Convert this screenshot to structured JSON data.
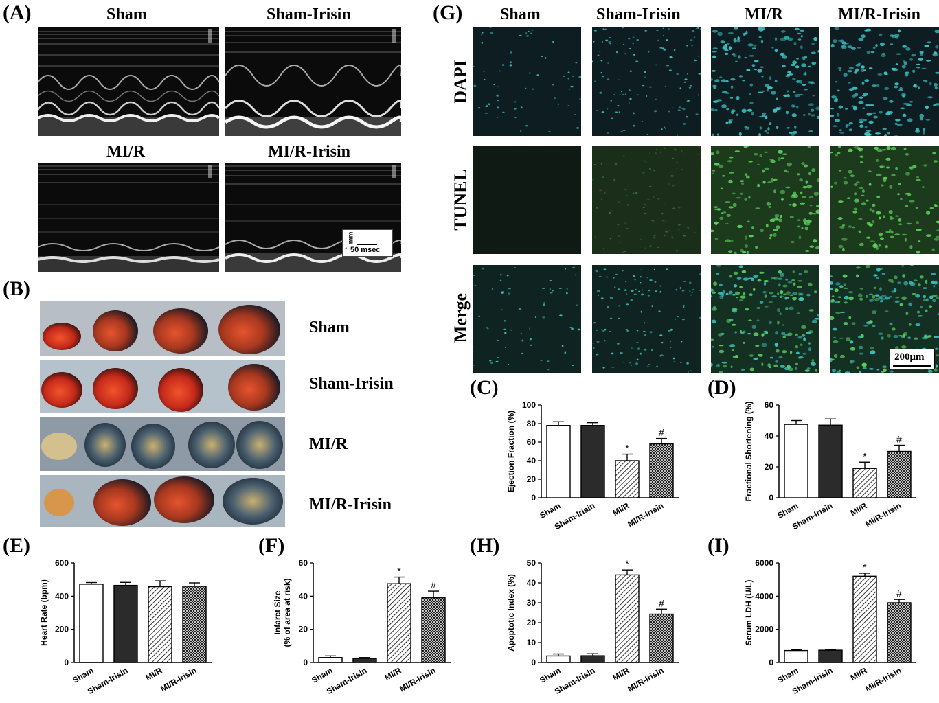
{
  "panels": {
    "A": "(A)",
    "B": "(B)",
    "C": "(C)",
    "D": "(D)",
    "E": "(E)",
    "F": "(F)",
    "G": "(G)",
    "H": "(H)",
    "I": "(I)"
  },
  "groups": [
    "Sham",
    "Sham-Irisin",
    "MI/R",
    "MI/R-Irisin"
  ],
  "echo": {
    "titles": [
      "Sham",
      "Sham-Irisin",
      "MI/R",
      "MI/R-Irisin"
    ],
    "scale_mm": "mm",
    "scale_ms": "50 msec",
    "scale_arrow": "↑"
  },
  "hearts": {
    "labels": [
      "Sham",
      "Sham-Irisin",
      "MI/R",
      "MI/R-Irisin"
    ]
  },
  "micro": {
    "col_titles": [
      "Sham",
      "Sham-Irisin",
      "MI/R",
      "MI/R-Irisin"
    ],
    "row_labels": [
      "DAPI",
      "TUNEL",
      "Merge"
    ],
    "scale_bar": "200μm"
  },
  "chart_data": [
    {
      "id": "C",
      "type": "bar",
      "categories": [
        "Sham",
        "Sham-Irisin",
        "MI/R",
        "MI/R-Irisin"
      ],
      "values": [
        78,
        78,
        40,
        58
      ],
      "errors": [
        4,
        3,
        7,
        6
      ],
      "sig": [
        "",
        "",
        "*",
        "#"
      ],
      "ylabel": "Ejection Fraction (%)",
      "ylabel2": "",
      "ylim": [
        0,
        100
      ],
      "yticks": [
        0,
        20,
        40,
        60,
        80,
        100
      ]
    },
    {
      "id": "D",
      "type": "bar",
      "categories": [
        "Sham",
        "Sham-Irisin",
        "MI/R",
        "MI/R-Irisin"
      ],
      "values": [
        47.5,
        47,
        19,
        30
      ],
      "errors": [
        2.5,
        4,
        4,
        4
      ],
      "sig": [
        "",
        "",
        "*",
        "#"
      ],
      "ylabel": "Fractional Shortening (%)",
      "ylabel2": "",
      "ylim": [
        0,
        60
      ],
      "yticks": [
        0,
        20,
        40,
        60
      ]
    },
    {
      "id": "E",
      "type": "bar",
      "categories": [
        "Sham",
        "Sham-Irisin",
        "MI/R",
        "MI/R-Irisin"
      ],
      "values": [
        472,
        465,
        457,
        460
      ],
      "errors": [
        10,
        18,
        35,
        20
      ],
      "sig": [
        "",
        "",
        "",
        ""
      ],
      "ylabel": "Heart Rate (bpm)",
      "ylabel2": "",
      "ylim": [
        0,
        600
      ],
      "yticks": [
        0,
        200,
        400,
        600
      ]
    },
    {
      "id": "F",
      "type": "bar",
      "categories": [
        "Sham",
        "Sham-Irisin",
        "MI/R",
        "MI/R-Irisin"
      ],
      "values": [
        3,
        2.5,
        47.5,
        39
      ],
      "errors": [
        1,
        0.5,
        4,
        4
      ],
      "sig": [
        "",
        "",
        "*",
        "#"
      ],
      "ylabel": "Infarct Size",
      "ylabel2": "(% of area at risk)",
      "ylim": [
        0,
        60
      ],
      "yticks": [
        0,
        20,
        40,
        60
      ]
    },
    {
      "id": "H",
      "type": "bar",
      "categories": [
        "Sham",
        "Sham-Irisin",
        "MI/R",
        "MI/R-Irisin"
      ],
      "values": [
        3.3,
        3.4,
        44,
        24.3
      ],
      "errors": [
        1,
        1,
        2.5,
        2.5
      ],
      "sig": [
        "",
        "",
        "*",
        "#"
      ],
      "ylabel": "Apoptotic Index (%)",
      "ylabel2": "",
      "ylim": [
        0,
        50
      ],
      "yticks": [
        0,
        10,
        20,
        30,
        40,
        50
      ]
    },
    {
      "id": "I",
      "type": "bar",
      "categories": [
        "Sham",
        "Sham-Irisin",
        "MI/R",
        "MI/R-Irisin"
      ],
      "values": [
        720,
        740,
        5200,
        3600
      ],
      "errors": [
        40,
        40,
        180,
        200
      ],
      "sig": [
        "",
        "",
        "*",
        "#"
      ],
      "ylabel": "Serum LDH (U/L)",
      "ylabel2": "",
      "ylim": [
        0,
        6000
      ],
      "yticks": [
        0,
        2000,
        4000,
        6000
      ]
    }
  ]
}
